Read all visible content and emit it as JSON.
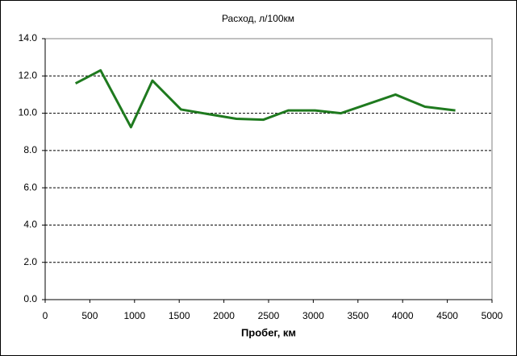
{
  "chart_data": {
    "type": "line",
    "title": "Расход, л/100км",
    "x_label": "Пробег, км",
    "x": [
      340,
      620,
      960,
      1200,
      1520,
      2140,
      2440,
      2720,
      3020,
      3310,
      3920,
      4250,
      4590
    ],
    "series": [
      {
        "name": "Расход, л/100км",
        "color": "#1f7a1f",
        "values": [
          11.6,
          12.3,
          9.25,
          11.75,
          10.2,
          9.7,
          9.65,
          10.15,
          10.15,
          10.0,
          11.0,
          10.35,
          10.15
        ]
      }
    ],
    "xlim": [
      0,
      5000
    ],
    "xticks": [
      0,
      500,
      1000,
      1500,
      2000,
      2500,
      3000,
      3500,
      4000,
      4500,
      5000
    ],
    "ylim": [
      0,
      14
    ],
    "yticks": [
      {
        "value": 0,
        "label": "0.0"
      },
      {
        "value": 2,
        "label": "2.0"
      },
      {
        "value": 4,
        "label": "4.0"
      },
      {
        "value": 6,
        "label": "6.0"
      },
      {
        "value": 8,
        "label": "8.0"
      },
      {
        "value": 10,
        "label": "10.0"
      },
      {
        "value": 12,
        "label": "12.0"
      },
      {
        "value": 14,
        "label": "14.0"
      }
    ],
    "grid": true,
    "legend": false
  }
}
